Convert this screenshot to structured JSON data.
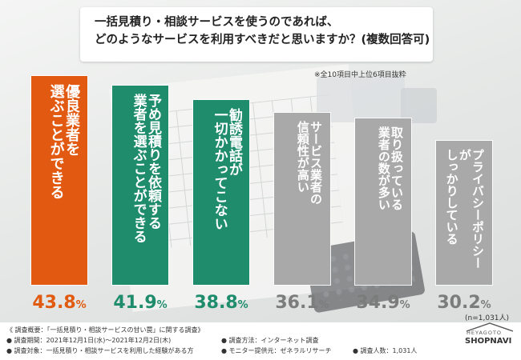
{
  "chart_data": {
    "type": "bar",
    "title_lines": [
      "一括見積り・相談サービスを使うのであれば、",
      "どのようなサービスを利用すべきだと思いますか？(複数回答可)"
    ],
    "subtitle": "※全10項目中上位6項目抜粋",
    "categories": [
      "優良業者を選ぶことができる",
      "予め見積りを依頼する業者を選ぶことができる",
      "勧誘電話が一切かかってこない",
      "サービス業者の信頼性が高い",
      "取り扱っている業者の数が多い",
      "プライバシーポリシーがしっかりしている"
    ],
    "label_lines": [
      [
        "優良業者を",
        "選ぶことができる"
      ],
      [
        "予め見積りを依頼する",
        "業者を選ぶことができる"
      ],
      [
        "勧誘電話が",
        "一切かかってこない"
      ],
      [
        "サービス業者の",
        "信頼性が高い"
      ],
      [
        "取り扱っている",
        "業者の数が多い"
      ],
      [
        "プライバシーポリシーが",
        "しっかりしている"
      ]
    ],
    "values": [
      43.8,
      41.9,
      38.8,
      36.1,
      34.9,
      30.2
    ],
    "value_labels": [
      "43.8%",
      "41.9%",
      "38.8%",
      "36.1%",
      "34.9%",
      "30.2%"
    ],
    "unit": "%",
    "ylim": [
      0,
      45
    ],
    "colors": [
      "#e25a11",
      "#1f8c6c",
      "#1f8c6c",
      "#a9a9a9",
      "#a9a9a9",
      "#a9a9a9"
    ],
    "pct_colors": [
      "#e05a0f",
      "#1f8c6c",
      "#1f8c6c",
      "#7c7c7c",
      "#7c7c7c",
      "#7c7c7c"
    ],
    "sample_note": "(n=1,031人)"
  },
  "footer": {
    "overview": "《 調査概要：「一括見積り・相談サービスの甘い罠」に関する調査》",
    "period": "● 調査期間：2021年12月1日(水)〜2021年12月2日(木)",
    "target": "● 調査対象：一括見積り・相談サービスを利用した経験がある方",
    "method": "● 調査方法：インターネット調査",
    "provider": "● モニター提供元：ゼネラルリサーチ",
    "respondents": "● 調査人数：1,031人",
    "logo_top": "HEYAGOTO",
    "logo_bottom": "SHOPNAVI"
  }
}
